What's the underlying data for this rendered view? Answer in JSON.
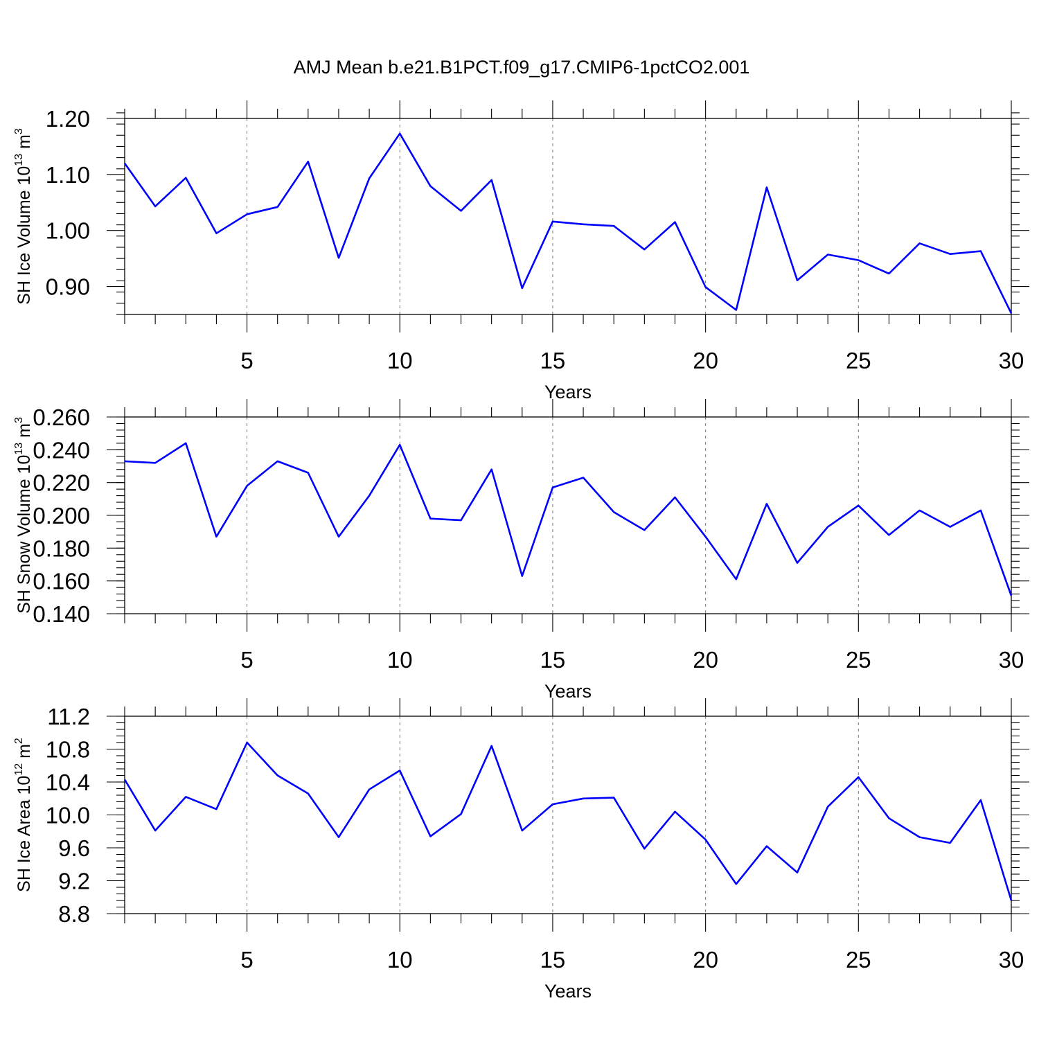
{
  "title": "AMJ Mean b.e21.B1PCT.f09_g17.CMIP6-1pctCO2.001",
  "chart_data": [
    {
      "type": "line",
      "name": "sh-ice-volume",
      "ylabel": {
        "prefix": "SH Ice Volume 10",
        "exp": "13",
        "unit": " m",
        "unit_exp": "3"
      },
      "xlabel": "Years",
      "xlim": [
        1,
        30
      ],
      "xticks": [
        5,
        10,
        15,
        20,
        25,
        30
      ],
      "ylim": [
        0.85,
        1.2
      ],
      "yticks": [
        "0.90",
        "1.00",
        "1.10",
        "1.20"
      ],
      "y_minor_step": 0.02,
      "grid": "vertical-dashed",
      "color": "#0000ff",
      "x": [
        1,
        2,
        3,
        4,
        5,
        6,
        7,
        8,
        9,
        10,
        11,
        12,
        13,
        14,
        15,
        16,
        17,
        18,
        19,
        20,
        21,
        22,
        23,
        24,
        25,
        26,
        27,
        28,
        29,
        30
      ],
      "values": [
        1.12,
        1.043,
        1.094,
        0.995,
        1.029,
        1.042,
        1.123,
        0.951,
        1.093,
        1.173,
        1.079,
        1.035,
        1.09,
        0.897,
        1.016,
        1.011,
        1.008,
        0.966,
        1.015,
        0.899,
        0.858,
        1.077,
        0.911,
        0.957,
        0.947,
        0.923,
        0.977,
        0.958,
        0.963,
        0.852
      ]
    },
    {
      "type": "line",
      "name": "sh-snow-volume",
      "ylabel": {
        "prefix": "SH Snow Volume 10",
        "exp": "13",
        "unit": " m",
        "unit_exp": "3"
      },
      "xlabel": "Years",
      "xlim": [
        1,
        30
      ],
      "xticks": [
        5,
        10,
        15,
        20,
        25,
        30
      ],
      "ylim": [
        0.14,
        0.26
      ],
      "yticks": [
        "0.140",
        "0.160",
        "0.180",
        "0.200",
        "0.220",
        "0.240",
        "0.260"
      ],
      "y_minor_step": 0.004,
      "grid": "vertical-dashed",
      "color": "#0000ff",
      "x": [
        1,
        2,
        3,
        4,
        5,
        6,
        7,
        8,
        9,
        10,
        11,
        12,
        13,
        14,
        15,
        16,
        17,
        18,
        19,
        20,
        21,
        22,
        23,
        24,
        25,
        26,
        27,
        28,
        29,
        30
      ],
      "values": [
        0.233,
        0.232,
        0.244,
        0.187,
        0.218,
        0.233,
        0.226,
        0.187,
        0.212,
        0.243,
        0.198,
        0.197,
        0.228,
        0.163,
        0.217,
        0.223,
        0.202,
        0.191,
        0.211,
        0.187,
        0.161,
        0.207,
        0.171,
        0.193,
        0.206,
        0.188,
        0.203,
        0.193,
        0.203,
        0.151
      ]
    },
    {
      "type": "line",
      "name": "sh-ice-area",
      "ylabel": {
        "prefix": "SH Ice Area 10",
        "exp": "12",
        "unit": " m",
        "unit_exp": "2"
      },
      "xlabel": "Years",
      "xlim": [
        1,
        30
      ],
      "xticks": [
        5,
        10,
        15,
        20,
        25,
        30
      ],
      "ylim": [
        8.8,
        11.2
      ],
      "yticks": [
        "8.8",
        "9.2",
        "9.6",
        "10.0",
        "10.4",
        "10.8",
        "11.2"
      ],
      "y_minor_step": 0.08,
      "grid": "vertical-dashed",
      "color": "#0000ff",
      "x": [
        1,
        2,
        3,
        4,
        5,
        6,
        7,
        8,
        9,
        10,
        11,
        12,
        13,
        14,
        15,
        16,
        17,
        18,
        19,
        20,
        21,
        22,
        23,
        24,
        25,
        26,
        27,
        28,
        29,
        30
      ],
      "values": [
        10.43,
        9.81,
        10.22,
        10.07,
        10.88,
        10.48,
        10.26,
        9.73,
        10.31,
        10.54,
        9.74,
        10.01,
        10.84,
        9.81,
        10.13,
        10.2,
        10.21,
        9.59,
        10.04,
        9.7,
        9.16,
        9.62,
        9.3,
        10.1,
        10.46,
        9.96,
        9.73,
        9.66,
        10.18,
        8.96
      ]
    }
  ]
}
